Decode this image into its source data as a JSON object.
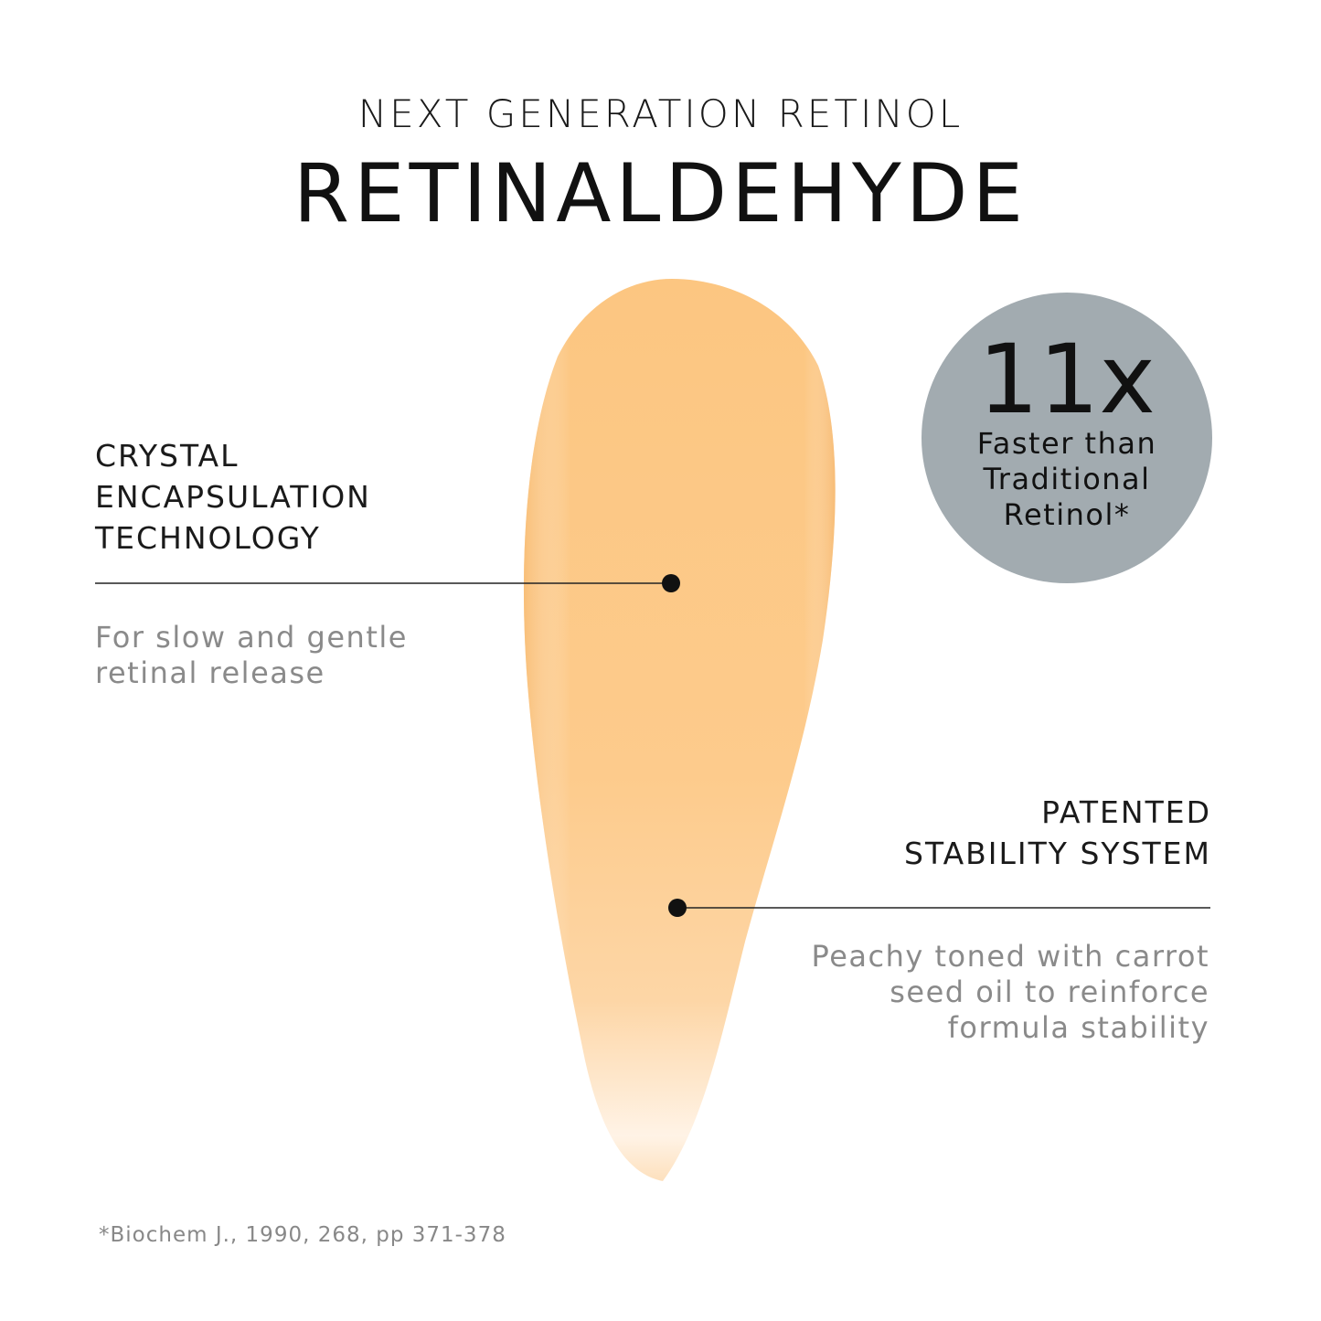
{
  "header": {
    "supertitle": "NEXT GENERATION RETINOL",
    "title": "RETINALDEHYDE"
  },
  "callouts": [
    {
      "heading_lines": [
        "CRYSTAL",
        "ENCAPSULATION",
        "TECHNOLOGY"
      ],
      "description_lines": [
        "For slow and gentle",
        "retinal release"
      ]
    },
    {
      "heading_lines": [
        "PATENTED",
        "STABILITY SYSTEM"
      ],
      "description_lines": [
        "Peachy toned with carrot",
        "seed oil to reinforce",
        "formula stability"
      ]
    }
  ],
  "badge": {
    "value": "11x",
    "lines": [
      "Faster than",
      "Traditional",
      "Retinol*"
    ],
    "color": "#a2abb0"
  },
  "footnote": "*Biochem J., 1990, 268, pp 371-378",
  "colors": {
    "swatch": "#fcc885",
    "swatch_light": "#fde3c0"
  }
}
